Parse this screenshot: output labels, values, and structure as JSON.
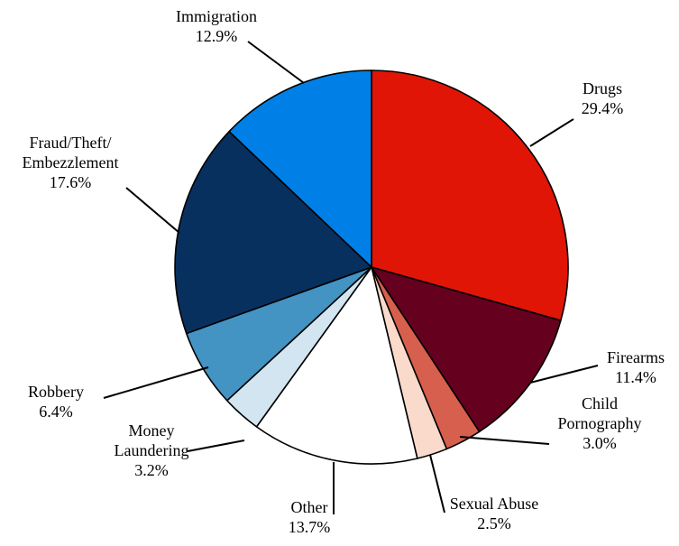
{
  "chart_data": {
    "type": "pie",
    "title": "",
    "slices": [
      {
        "label_lines": [
          "Drugs"
        ],
        "value": 29.4,
        "value_text": "29.4%",
        "color": "#E01506"
      },
      {
        "label_lines": [
          "Firearms"
        ],
        "value": 11.4,
        "value_text": "11.4%",
        "color": "#66001F"
      },
      {
        "label_lines": [
          "Child",
          "Pornography"
        ],
        "value": 3.0,
        "value_text": "3.0%",
        "color": "#D65F4D"
      },
      {
        "label_lines": [
          "Sexual Abuse"
        ],
        "value": 2.5,
        "value_text": "2.5%",
        "color": "#FADACB"
      },
      {
        "label_lines": [
          "Other"
        ],
        "value": 13.7,
        "value_text": "13.7%",
        "color": "#FFFFFF"
      },
      {
        "label_lines": [
          "Money",
          "Laundering"
        ],
        "value": 3.2,
        "value_text": "3.2%",
        "color": "#D2E5F0"
      },
      {
        "label_lines": [
          "Robbery"
        ],
        "value": 6.4,
        "value_text": "6.4%",
        "color": "#4393C3"
      },
      {
        "label_lines": [
          "Fraud/Theft/",
          "Embezzlement"
        ],
        "value": 17.6,
        "value_text": "17.6%",
        "color": "#08305F"
      },
      {
        "label_lines": [
          "Immigration"
        ],
        "value": 12.9,
        "value_text": "12.9%",
        "color": "#0080E6"
      }
    ],
    "start_angle": "12 o'clock",
    "direction": "clockwise",
    "legend": "none",
    "slice_border_color": "#000000"
  }
}
